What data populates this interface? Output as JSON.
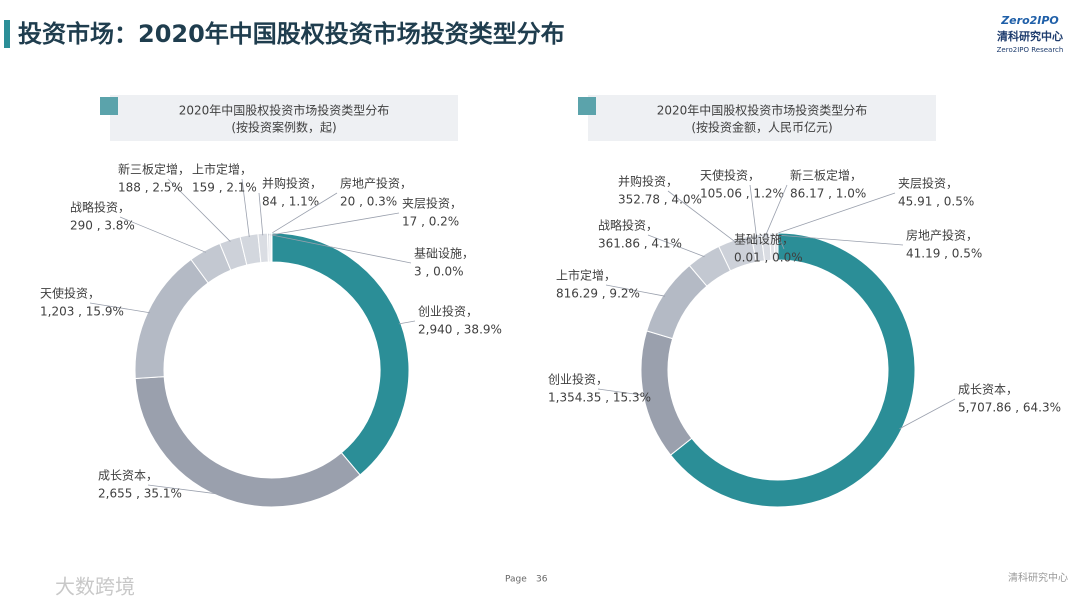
{
  "header": {
    "title": "投资市场：2020年中国股权投资市场投资类型分布"
  },
  "logo": {
    "brand": "Zero2IPO",
    "name": "清科研究中心",
    "sub": "Zero2IPO Research"
  },
  "footer": {
    "page_label": "Page",
    "page_number": "36",
    "watermark": "大数跨境",
    "org": "清科研究中心"
  },
  "chart_data": [
    {
      "type": "donut",
      "title": "2020年中国股权投资市场投资类型分布",
      "subtitle": "(按投资案例数，起)",
      "categories": [
        "创业投资，",
        "成长资本，",
        "天使投资，",
        "战略投资，",
        "新三板定增，",
        "上市定增，",
        "并购投资，",
        "房地产投资，",
        "夹层投资，",
        "基础设施，"
      ],
      "values": [
        2940,
        2655,
        1203,
        290,
        188,
        159,
        84,
        20,
        17,
        3
      ],
      "value_labels": [
        "2,940 , 38.9%",
        "2,655 , 35.1%",
        "1,203 , 15.9%",
        "290 , 3.8%",
        "188 , 2.5%",
        "159 , 2.1%",
        "84 , 1.1%",
        "20 , 0.3%",
        "17 , 0.2%",
        "3 , 0.0%"
      ],
      "colors": [
        "#2b8e97",
        "#9aa0ad",
        "#b4bac5",
        "#c3c8d1",
        "#cdd1d9",
        "#d3d7de",
        "#dadde3",
        "#e0e3e8",
        "#e6e8ec",
        "#eceef1"
      ]
    },
    {
      "type": "donut",
      "title": "2020年中国股权投资市场投资类型分布",
      "subtitle": "(按投资金额，人民币亿元)",
      "categories": [
        "成长资本，",
        "创业投资，",
        "上市定增，",
        "战略投资，",
        "并购投资，",
        "天使投资，",
        "新三板定增，",
        "夹层投资，",
        "房地产投资，",
        "基础设施，"
      ],
      "values": [
        5707.86,
        1354.35,
        816.29,
        361.86,
        352.78,
        105.06,
        86.17,
        45.91,
        41.19,
        0.01
      ],
      "value_labels": [
        "5,707.86 , 64.3%",
        "1,354.35 , 15.3%",
        "816.29 , 9.2%",
        "361.86 , 4.1%",
        "352.78 , 4.0%",
        "105.06 , 1.2%",
        "86.17 , 1.0%",
        "45.91 , 0.5%",
        "41.19 , 0.5%",
        "0.01 , 0.0%"
      ],
      "colors": [
        "#2b8e97",
        "#9aa0ad",
        "#b4bac5",
        "#c3c8d1",
        "#cdd1d9",
        "#d3d7de",
        "#dadde3",
        "#e0e3e8",
        "#e6e8ec",
        "#eceef1"
      ]
    }
  ]
}
